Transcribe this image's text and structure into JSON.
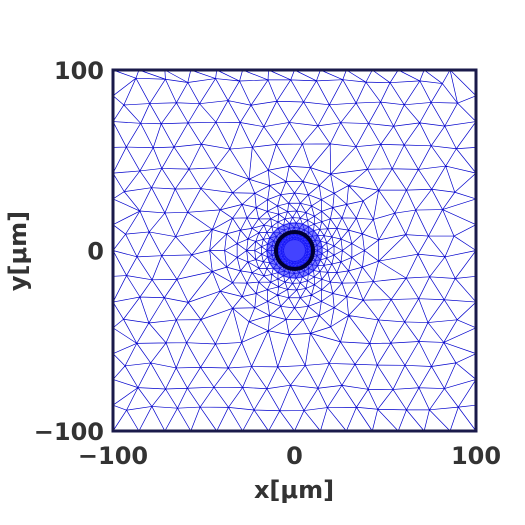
{
  "chart_data": {
    "type": "mesh",
    "title": "",
    "xlabel": "x[μm]",
    "ylabel": "y[μm]",
    "xlim": [
      -100,
      100
    ],
    "ylim": [
      -100,
      100
    ],
    "x_ticks": [
      {
        "value": -100,
        "label": "−100"
      },
      {
        "value": 0,
        "label": "0"
      },
      {
        "value": 100,
        "label": "100"
      }
    ],
    "y_ticks": [
      {
        "value": -100,
        "label": "−100"
      },
      {
        "value": 0,
        "label": "0"
      },
      {
        "value": 100,
        "label": "100"
      }
    ],
    "domain": {
      "x_min": -100,
      "x_max": 100,
      "y_min": -100,
      "y_max": 100
    },
    "inclusion": {
      "center_x": 0,
      "center_y": 0,
      "radius": 6
    },
    "refinement": {
      "coarse_element_size": 14,
      "fine_element_size": 1.5,
      "refinement_zone_radius": 55
    },
    "grid": false,
    "colors": {
      "mesh_edges": "#0000cc",
      "dense_core": "#1a1aff",
      "inclusion_outline": "#000033",
      "frame": "#1a1a4a",
      "text": "#333333"
    }
  }
}
